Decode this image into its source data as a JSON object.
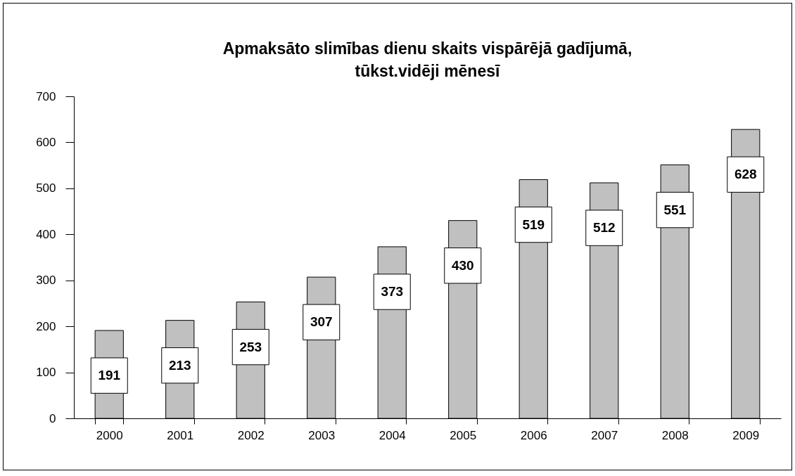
{
  "chart_data": {
    "type": "bar",
    "title": [
      "Apmaksāto slimības dienu skaits vispārējā gadījumā,",
      "tūkst.vidēji mēnesī"
    ],
    "categories": [
      "2000",
      "2001",
      "2002",
      "2003",
      "2004",
      "2005",
      "2006",
      "2007",
      "2008",
      "2009"
    ],
    "values": [
      191,
      213,
      253,
      307,
      373,
      430,
      519,
      512,
      551,
      628
    ],
    "color": "#c0c0c0",
    "ylim": [
      0,
      700
    ],
    "yticks": [
      0,
      100,
      200,
      300,
      400,
      500,
      600,
      700
    ],
    "data_labels": true,
    "grid": false
  }
}
